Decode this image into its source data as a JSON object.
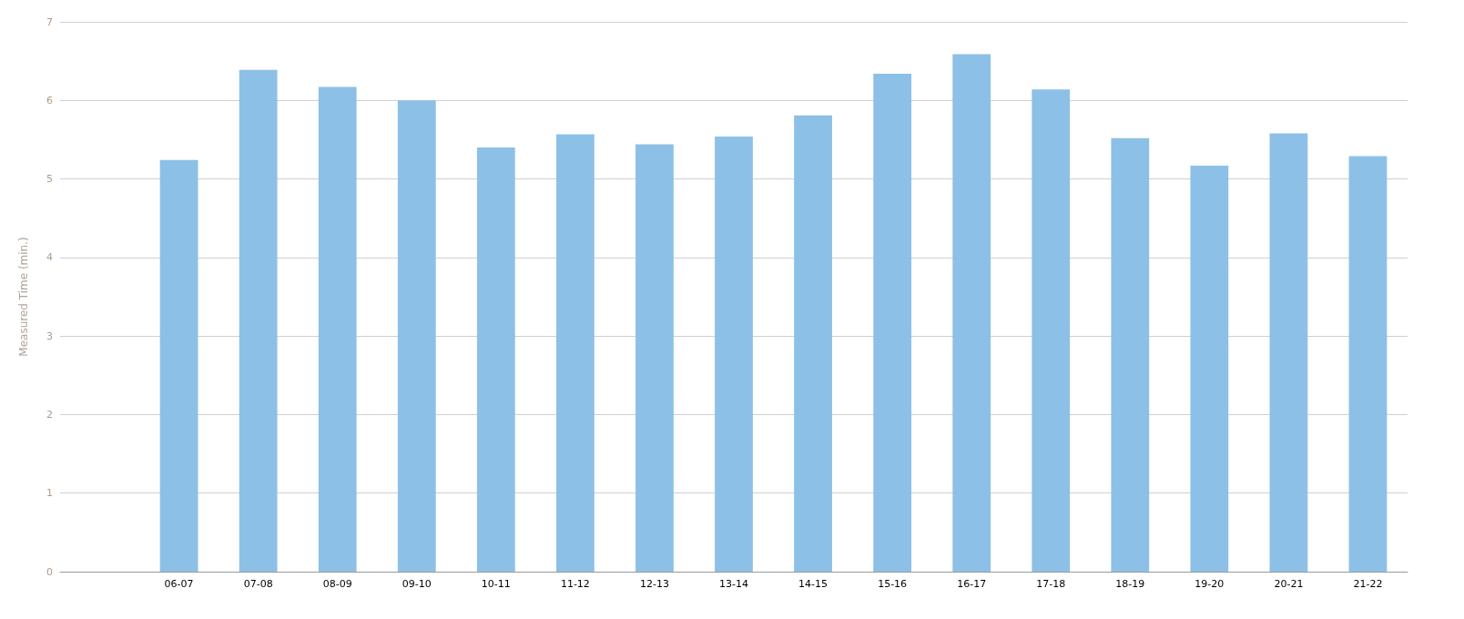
{
  "chart_data": {
    "type": "bar",
    "ylabel": "Measured Time (min.)",
    "categories": [
      null,
      "06-07",
      "07-08",
      "08-09",
      "09-10",
      "10-11",
      "11-12",
      "12-13",
      "13-14",
      "14-15",
      "15-16",
      "16-17",
      "17-18",
      "18-19",
      "19-20",
      "20-21",
      "21-22"
    ],
    "values": [
      null,
      5.24,
      6.39,
      6.17,
      6.0,
      5.4,
      5.57,
      5.44,
      5.54,
      5.81,
      6.34,
      6.59,
      6.14,
      5.52,
      5.17,
      5.58,
      5.29
    ],
    "color": "#8bbfe5",
    "ylim": [
      0,
      7
    ],
    "yticks": [
      0,
      1,
      2,
      3,
      4,
      5,
      6,
      7
    ],
    "grid": "y"
  }
}
